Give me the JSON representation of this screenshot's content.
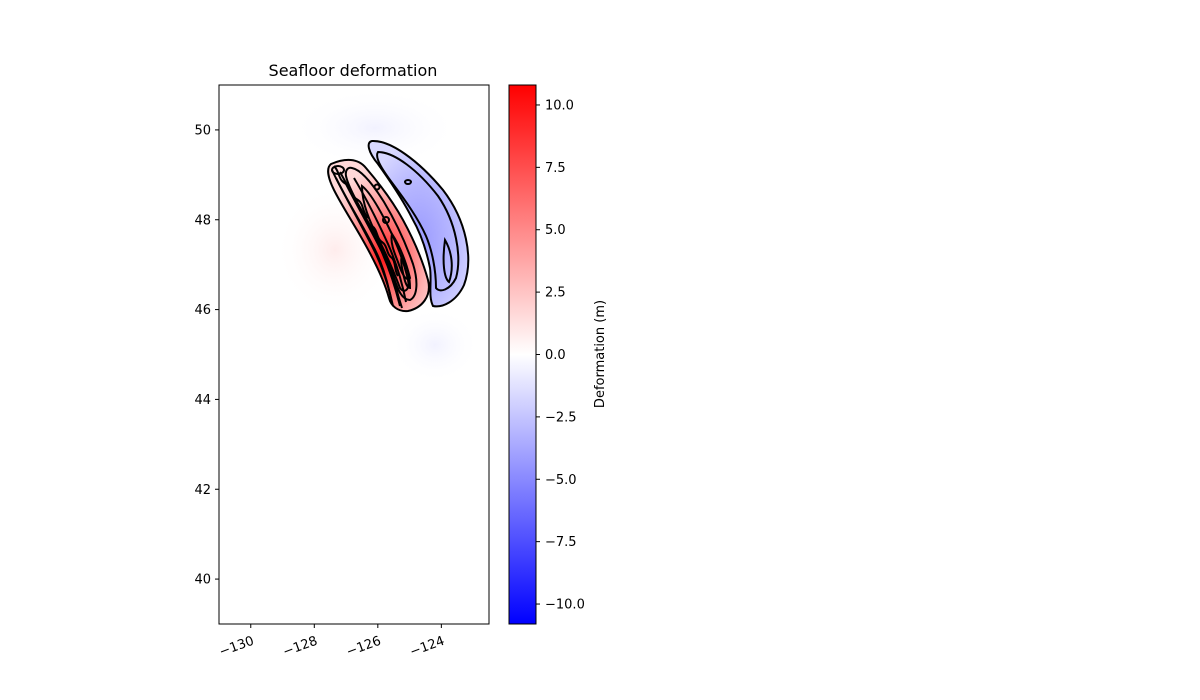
{
  "chart_data": {
    "type": "heatmap",
    "title": "Seafloor deformation",
    "xlabel": "",
    "ylabel": "",
    "xlim": [
      -131,
      -122.5
    ],
    "ylim": [
      39,
      51
    ],
    "x_ticks": [
      -130,
      -128,
      -126,
      -124
    ],
    "x_tick_labels": [
      "−130",
      "−128",
      "−126",
      "−124"
    ],
    "y_ticks": [
      40,
      42,
      44,
      46,
      48,
      50
    ],
    "y_tick_labels": [
      "40",
      "42",
      "44",
      "46",
      "48",
      "50"
    ],
    "grid": false,
    "colormap": "bwr",
    "colormap_colors": [
      "#0000ff",
      "#ffffff",
      "#ff0000"
    ],
    "colorbar": {
      "label": "Deformation (m)",
      "range": [
        -10.8,
        10.8
      ],
      "ticks": [
        -10.0,
        -7.5,
        -5.0,
        -2.5,
        0.0,
        2.5,
        5.0,
        7.5,
        10.0
      ],
      "tick_labels": [
        "−10.0",
        "−7.5",
        "−5.0",
        "−2.5",
        "0.0",
        "2.5",
        "5.0",
        "7.5",
        "10.0"
      ]
    },
    "contour_color": "#000000",
    "deformation_features": [
      {
        "kind": "uplift",
        "peak_value": 10.5,
        "center": [
          -125.1,
          46.8
        ],
        "extent_lat": [
          46.0,
          49.2
        ]
      },
      {
        "kind": "subsidence",
        "peak_value": -4.0,
        "center": [
          -124.2,
          47.6
        ],
        "extent_lat": [
          46.1,
          49.7
        ]
      }
    ]
  }
}
